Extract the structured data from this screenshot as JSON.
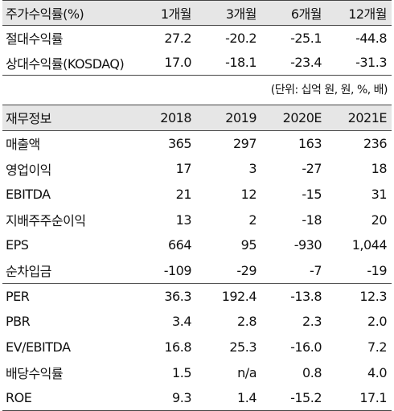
{
  "returns": {
    "headers": [
      "주가수익률(%)",
      "1개월",
      "3개월",
      "6개월",
      "12개월"
    ],
    "rows": [
      {
        "label": "절대수익률",
        "values": [
          "27.2",
          "-20.2",
          "-25.1",
          "-44.8"
        ]
      },
      {
        "label": "상대수익률(KOSDAQ)",
        "values": [
          "17.0",
          "-18.1",
          "-23.4",
          "-31.3"
        ]
      }
    ]
  },
  "unit_note": "(단위: 십억 원, 원, %, 배)",
  "financials": {
    "headers": [
      "재무정보",
      "2018",
      "2019",
      "2020E",
      "2021E"
    ],
    "group1": [
      {
        "label": "매출액",
        "values": [
          "365",
          "297",
          "163",
          "236"
        ]
      },
      {
        "label": "영업이익",
        "values": [
          "17",
          "3",
          "-27",
          "18"
        ]
      },
      {
        "label": "EBITDA",
        "values": [
          "21",
          "12",
          "-15",
          "31"
        ]
      },
      {
        "label": "지배주주순이익",
        "values": [
          "13",
          "2",
          "-18",
          "20"
        ]
      },
      {
        "label": "EPS",
        "values": [
          "664",
          "95",
          "-930",
          "1,044"
        ]
      },
      {
        "label": "순차입금",
        "values": [
          "-109",
          "-29",
          "-7",
          "-19"
        ]
      }
    ],
    "group2": [
      {
        "label": "PER",
        "values": [
          "36.3",
          "192.4",
          "-13.8",
          "12.3"
        ]
      },
      {
        "label": "PBR",
        "values": [
          "3.4",
          "2.8",
          "2.3",
          "2.0"
        ]
      },
      {
        "label": "EV/EBITDA",
        "values": [
          "16.8",
          "25.3",
          "-16.0",
          "7.2"
        ]
      },
      {
        "label": "배당수익률",
        "values": [
          "1.5",
          "n/a",
          "0.8",
          "4.0"
        ]
      },
      {
        "label": "ROE",
        "values": [
          "9.3",
          "1.4",
          "-15.2",
          "17.1"
        ]
      }
    ]
  }
}
